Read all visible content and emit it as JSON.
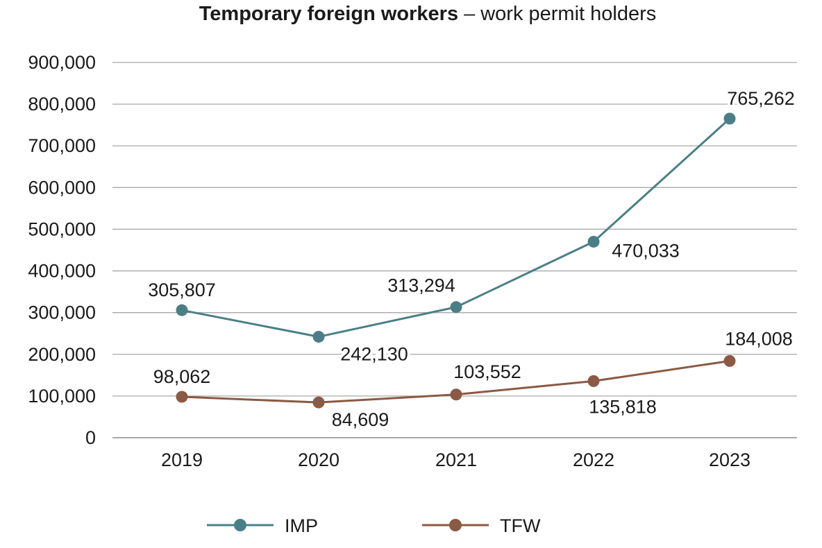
{
  "chart_data": {
    "type": "line",
    "title": "Temporary foreign workers",
    "title_separator": "–",
    "subtitle": "work permit holders",
    "categories": [
      "2019",
      "2020",
      "2021",
      "2022",
      "2023"
    ],
    "y_ticks": [
      "0",
      "100,000",
      "200,000",
      "300,000",
      "400,000",
      "500,000",
      "600,000",
      "700,000",
      "800,000",
      "900,000"
    ],
    "ylim": [
      0,
      900000
    ],
    "grid": true,
    "legend_position": "bottom",
    "series": [
      {
        "name": "IMP",
        "color": "#4a7f86",
        "values": [
          305807,
          242130,
          313294,
          470033,
          765262
        ],
        "labels": [
          "305,807",
          "242,130",
          "313,294",
          "470,033",
          "765,262"
        ]
      },
      {
        "name": "TFW",
        "color": "#8a5a44",
        "values": [
          98062,
          84609,
          103552,
          135818,
          184008
        ],
        "labels": [
          "98,062",
          "84,609",
          "103,552",
          "135,818",
          "184,008"
        ]
      }
    ]
  }
}
